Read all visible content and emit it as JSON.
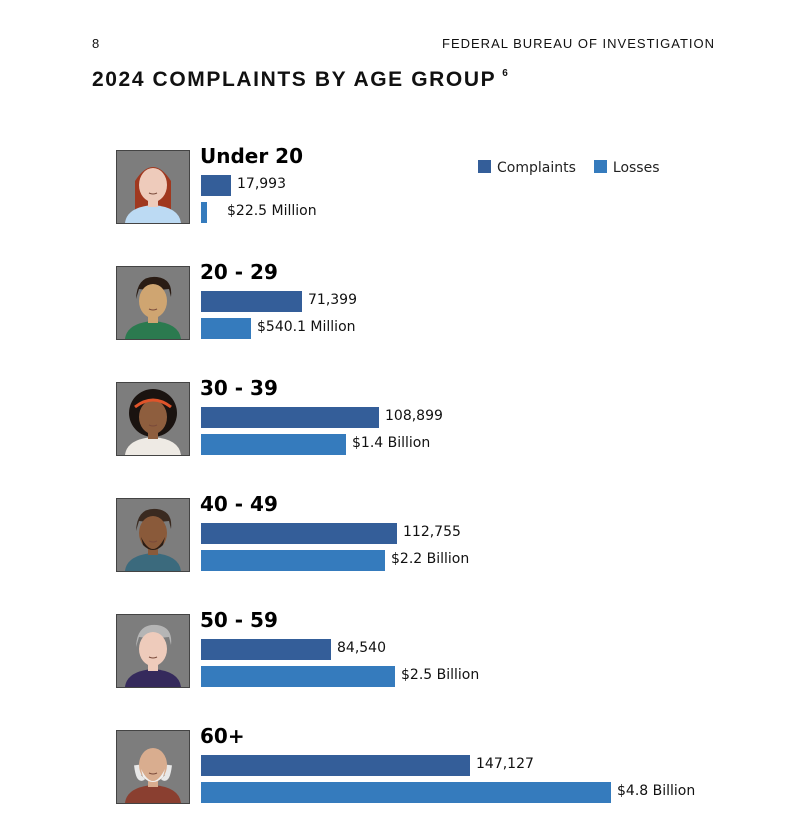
{
  "page_number": "8",
  "header": "FEDERAL BUREAU OF INVESTIGATION",
  "title": "2024 COMPLAINTS BY AGE GROUP",
  "footnote": "6",
  "chart_data": {
    "type": "bar",
    "title": "2024 COMPLAINTS BY AGE GROUP",
    "orientation": "horizontal",
    "legend_position": "top-right",
    "categories": [
      "Under 20",
      "20 - 29",
      "30 - 39",
      "40 - 49",
      "50 - 59",
      "60+"
    ],
    "series": [
      {
        "name": "Complaints",
        "color": "#345e99",
        "values": [
          17993,
          71399,
          108899,
          112755,
          84540,
          147127
        ],
        "labels": [
          "17,993",
          "71,399",
          "108,899",
          "112,755",
          "84,540",
          "147,127"
        ]
      },
      {
        "name": "Losses",
        "color": "#357bbd",
        "unit": "USD millions",
        "values": [
          22.5,
          540.1,
          1400,
          2200,
          2500,
          4800
        ],
        "labels": [
          "$22.5 Million",
          "$540.1 Million",
          "$1.4 Billion",
          "$2.2 Billion",
          "$2.5 Billion",
          "$4.8 Billion"
        ]
      }
    ]
  }
}
